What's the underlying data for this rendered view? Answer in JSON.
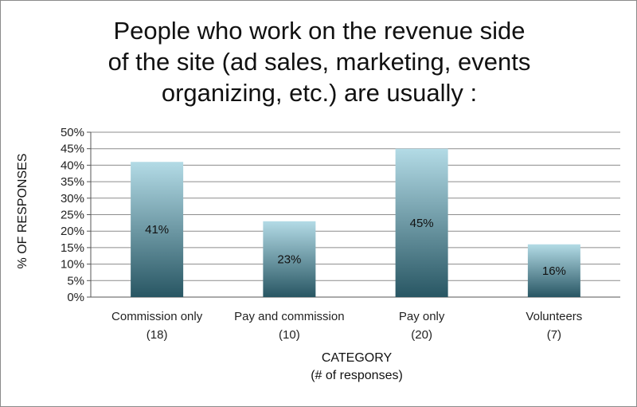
{
  "chart_data": {
    "type": "bar",
    "title_lines": [
      "People who work on the revenue side",
      "of the site (ad sales, marketing, events",
      "organizing, etc.) are usually :"
    ],
    "categories": [
      {
        "label": "Commission only",
        "count": "(18)"
      },
      {
        "label": "Pay and commission",
        "count": "(10)"
      },
      {
        "label": "Pay only",
        "count": "(20)"
      },
      {
        "label": "Volunteers",
        "count": "(7)"
      }
    ],
    "values": [
      41,
      23,
      45,
      16
    ],
    "value_labels": [
      "41%",
      "23%",
      "45%",
      "16%"
    ],
    "ylabel": "% OF RESPONSES",
    "xlabel_lines": [
      "CATEGORY",
      "(# of responses)"
    ],
    "ylim": [
      0,
      50
    ],
    "y_ticks": [
      0,
      5,
      10,
      15,
      20,
      25,
      30,
      35,
      40,
      45,
      50
    ],
    "y_tick_labels": [
      "0%",
      "5%",
      "10%",
      "15%",
      "20%",
      "25%",
      "30%",
      "35%",
      "40%",
      "45%",
      "50%"
    ],
    "grid": true,
    "legend": "none",
    "colors": {
      "bar_top": "#b3dbe6",
      "bar_bottom": "#285663",
      "gridline": "#8c8c8c",
      "axis": "#555555"
    }
  }
}
